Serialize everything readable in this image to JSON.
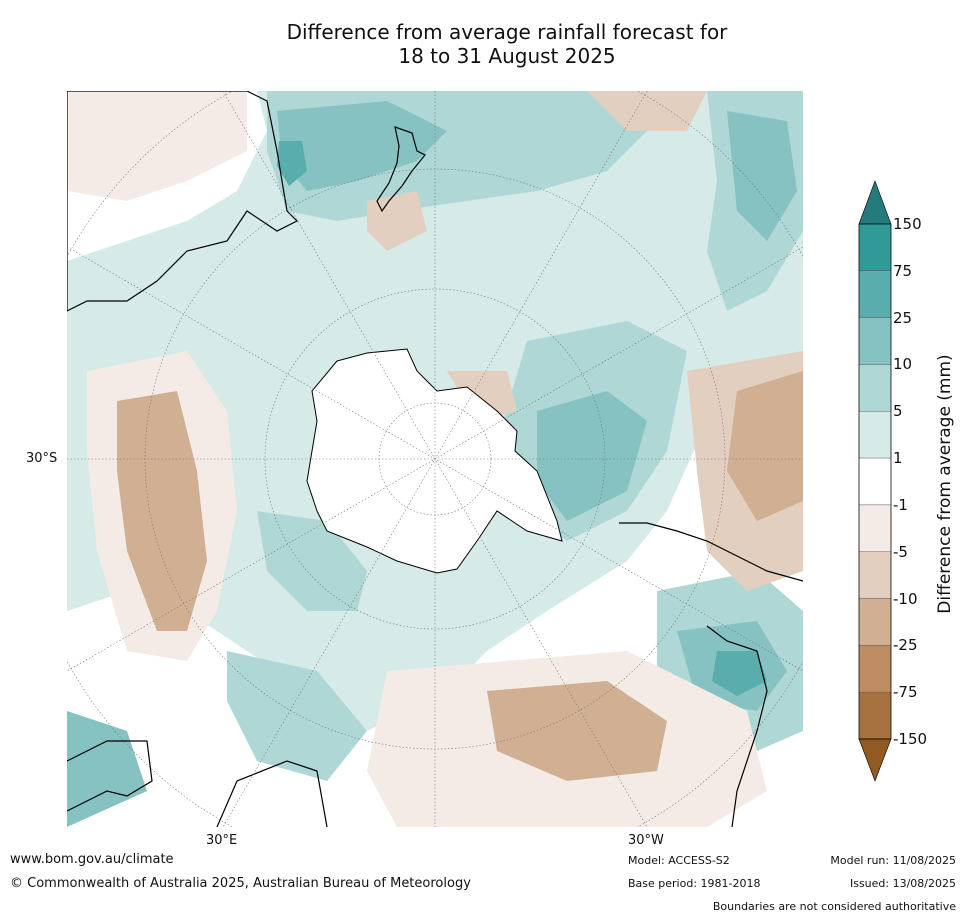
{
  "title": {
    "line1": "Difference from average rainfall forecast for",
    "line2": "18 to 31 August 2025"
  },
  "map": {
    "projection": "south-polar stereographic",
    "lat_label": "30°S",
    "lon_labels": [
      "30°E",
      "30°W"
    ],
    "region_colors": {
      "land_outline": "#000000",
      "graticule": "#777777"
    }
  },
  "colorbar": {
    "title": "Difference from average (mm)",
    "ticks": [
      "150",
      "75",
      "25",
      "10",
      "5",
      "1",
      "-1",
      "-5",
      "-10",
      "-25",
      "-75",
      "-150"
    ],
    "colors": [
      "#237b7b",
      "#2f9a98",
      "#5aadad",
      "#85c2c1",
      "#aed7d5",
      "#d6eae8",
      "#ffffff",
      "#f4ebe6",
      "#e2cfbf",
      "#d1af92",
      "#bd8d63",
      "#a87240",
      "#905a22"
    ]
  },
  "footer": {
    "website": "www.bom.gov.au/climate",
    "copyright": "© Commonwealth of Australia 2025, Australian Bureau of Meteorology",
    "model": "Model: ACCESS-S2",
    "base_period": "Base period: 1981-2018",
    "model_run": "Model run: 11/08/2025",
    "issued": "Issued: 13/08/2025",
    "disclaimer": "Boundaries are not considered authoritative"
  }
}
